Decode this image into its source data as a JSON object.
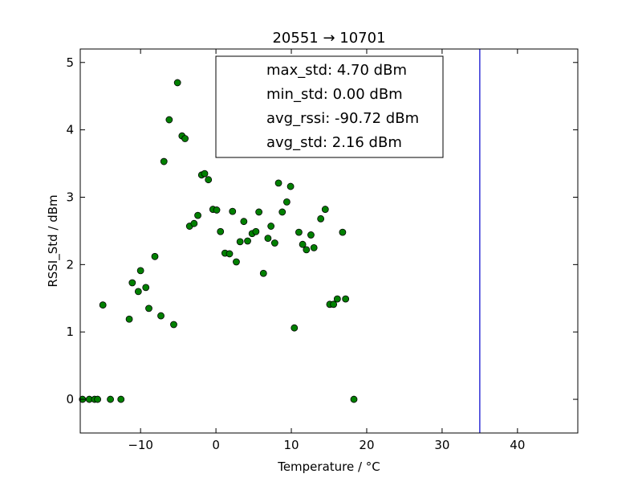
{
  "chart_data": {
    "type": "scatter",
    "title": "20551 → 10701",
    "xlabel": "Temperature / °C",
    "ylabel": "RSSI_Std / dBm",
    "xlim": [
      -18,
      48
    ],
    "ylim": [
      -0.5,
      5.2
    ],
    "xticks": [
      -10,
      0,
      10,
      20,
      30,
      40
    ],
    "yticks": [
      0,
      1,
      2,
      3,
      4,
      5
    ],
    "xtick_labels": [
      "−10",
      "0",
      "10",
      "20",
      "30",
      "40"
    ],
    "ytick_labels": [
      "0",
      "1",
      "2",
      "3",
      "4",
      "5"
    ],
    "grid": false,
    "marker_color": "#008000",
    "vline": {
      "x": 35,
      "color": "#0000cc"
    },
    "annotation_box": {
      "placement": "top-center",
      "lines": [
        "max_std: 4.70 dBm",
        "min_std: 0.00 dBm",
        "avg_rssi: -90.72 dBm",
        "avg_std: 2.16 dBm"
      ]
    },
    "points": [
      {
        "x": -17.7,
        "y": 0.0
      },
      {
        "x": -16.8,
        "y": 0.0
      },
      {
        "x": -16.1,
        "y": 0.0
      },
      {
        "x": -15.7,
        "y": 0.0
      },
      {
        "x": -14.0,
        "y": 0.0
      },
      {
        "x": -12.6,
        "y": 0.0
      },
      {
        "x": 18.3,
        "y": 0.0
      },
      {
        "x": -15.0,
        "y": 1.4
      },
      {
        "x": -11.5,
        "y": 1.19
      },
      {
        "x": -11.1,
        "y": 1.73
      },
      {
        "x": -10.3,
        "y": 1.6
      },
      {
        "x": -10.0,
        "y": 1.91
      },
      {
        "x": -9.3,
        "y": 1.66
      },
      {
        "x": -8.9,
        "y": 1.35
      },
      {
        "x": -8.1,
        "y": 2.12
      },
      {
        "x": -7.3,
        "y": 1.24
      },
      {
        "x": -6.9,
        "y": 3.53
      },
      {
        "x": -6.2,
        "y": 4.15
      },
      {
        "x": -5.6,
        "y": 1.11
      },
      {
        "x": -5.1,
        "y": 4.7
      },
      {
        "x": -4.5,
        "y": 3.91
      },
      {
        "x": -4.1,
        "y": 3.87
      },
      {
        "x": -3.5,
        "y": 2.57
      },
      {
        "x": -2.9,
        "y": 2.61
      },
      {
        "x": -2.4,
        "y": 2.73
      },
      {
        "x": -1.9,
        "y": 3.33
      },
      {
        "x": -1.5,
        "y": 3.35
      },
      {
        "x": -1.0,
        "y": 3.26
      },
      {
        "x": -0.4,
        "y": 2.82
      },
      {
        "x": 0.1,
        "y": 2.81
      },
      {
        "x": 0.6,
        "y": 2.49
      },
      {
        "x": 1.2,
        "y": 2.17
      },
      {
        "x": 1.8,
        "y": 2.16
      },
      {
        "x": 2.2,
        "y": 2.79
      },
      {
        "x": 2.7,
        "y": 2.04
      },
      {
        "x": 3.2,
        "y": 2.34
      },
      {
        "x": 3.7,
        "y": 2.64
      },
      {
        "x": 4.2,
        "y": 2.35
      },
      {
        "x": 4.8,
        "y": 2.46
      },
      {
        "x": 5.3,
        "y": 2.49
      },
      {
        "x": 5.7,
        "y": 2.78
      },
      {
        "x": 6.3,
        "y": 1.87
      },
      {
        "x": 6.9,
        "y": 2.39
      },
      {
        "x": 7.3,
        "y": 2.57
      },
      {
        "x": 7.8,
        "y": 2.32
      },
      {
        "x": 8.3,
        "y": 3.21
      },
      {
        "x": 8.8,
        "y": 2.78
      },
      {
        "x": 9.4,
        "y": 2.93
      },
      {
        "x": 9.9,
        "y": 3.16
      },
      {
        "x": 10.4,
        "y": 1.06
      },
      {
        "x": 11.0,
        "y": 2.48
      },
      {
        "x": 11.5,
        "y": 2.3
      },
      {
        "x": 12.0,
        "y": 2.22
      },
      {
        "x": 12.6,
        "y": 2.44
      },
      {
        "x": 13.0,
        "y": 2.25
      },
      {
        "x": 13.9,
        "y": 2.68
      },
      {
        "x": 14.5,
        "y": 2.82
      },
      {
        "x": 15.1,
        "y": 1.41
      },
      {
        "x": 15.6,
        "y": 1.41
      },
      {
        "x": 16.1,
        "y": 1.49
      },
      {
        "x": 16.8,
        "y": 2.48
      },
      {
        "x": 17.2,
        "y": 1.49
      }
    ]
  }
}
